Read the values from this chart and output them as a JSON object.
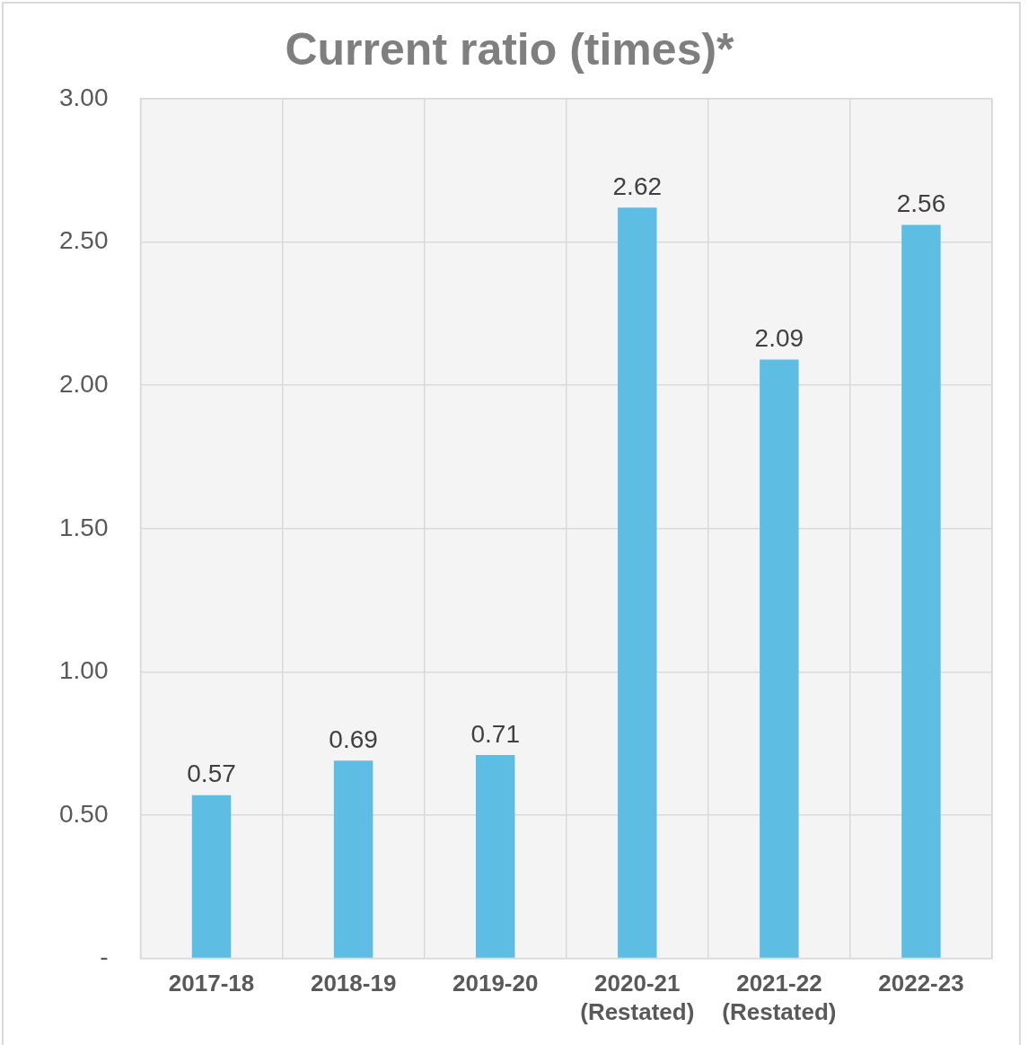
{
  "chart_data": {
    "type": "bar",
    "title": "Current ratio (times)*",
    "categories": [
      "2017-18",
      "2018-19",
      "2019-20",
      "2020-21 (Restated)",
      "2021-22 (Restated)",
      "2022-23"
    ],
    "values": [
      0.57,
      0.69,
      0.71,
      2.62,
      2.09,
      2.56
    ],
    "color": "#5ebde3",
    "ylim": [
      0,
      3
    ],
    "yticks": [
      {
        "value": 0,
        "label": "-"
      },
      {
        "value": 0.5,
        "label": "0.50"
      },
      {
        "value": 1,
        "label": "1.00"
      },
      {
        "value": 1.5,
        "label": "1.50"
      },
      {
        "value": 2,
        "label": "2.00"
      },
      {
        "value": 2.5,
        "label": "2.50"
      },
      {
        "value": 3,
        "label": "3.00"
      }
    ],
    "grid": true,
    "data_labels": true,
    "legend": false
  }
}
